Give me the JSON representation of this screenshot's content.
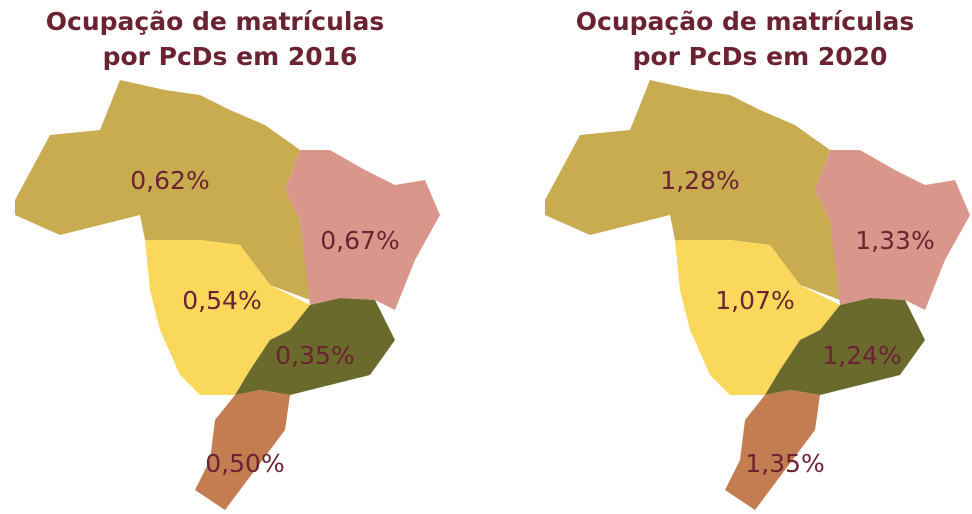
{
  "maps": [
    {
      "title": [
        "Ocupação de matrículas",
        "por PcDs em 2016"
      ],
      "regions": [
        {
          "label": "0,62%",
          "color": "#c9ac4f"
        },
        {
          "label": "0,67%",
          "color": "#d9978c"
        },
        {
          "label": "0,54%",
          "color": "#fad85c"
        },
        {
          "label": "0,35%",
          "color": "#6b6a2d"
        },
        {
          "label": "0,50%",
          "color": "#c47d50"
        }
      ]
    },
    {
      "title": [
        "Ocupação de matrículas",
        "por PcDs em 2020"
      ],
      "regions": [
        {
          "label": "1,28%",
          "color": "#c9ac4f"
        },
        {
          "label": "1,33%",
          "color": "#d9978c"
        },
        {
          "label": "1,07%",
          "color": "#fad85c"
        },
        {
          "label": "1,24%",
          "color": "#6b6a2d"
        },
        {
          "label": "1,35%",
          "color": "#c47d50"
        }
      ]
    }
  ]
}
